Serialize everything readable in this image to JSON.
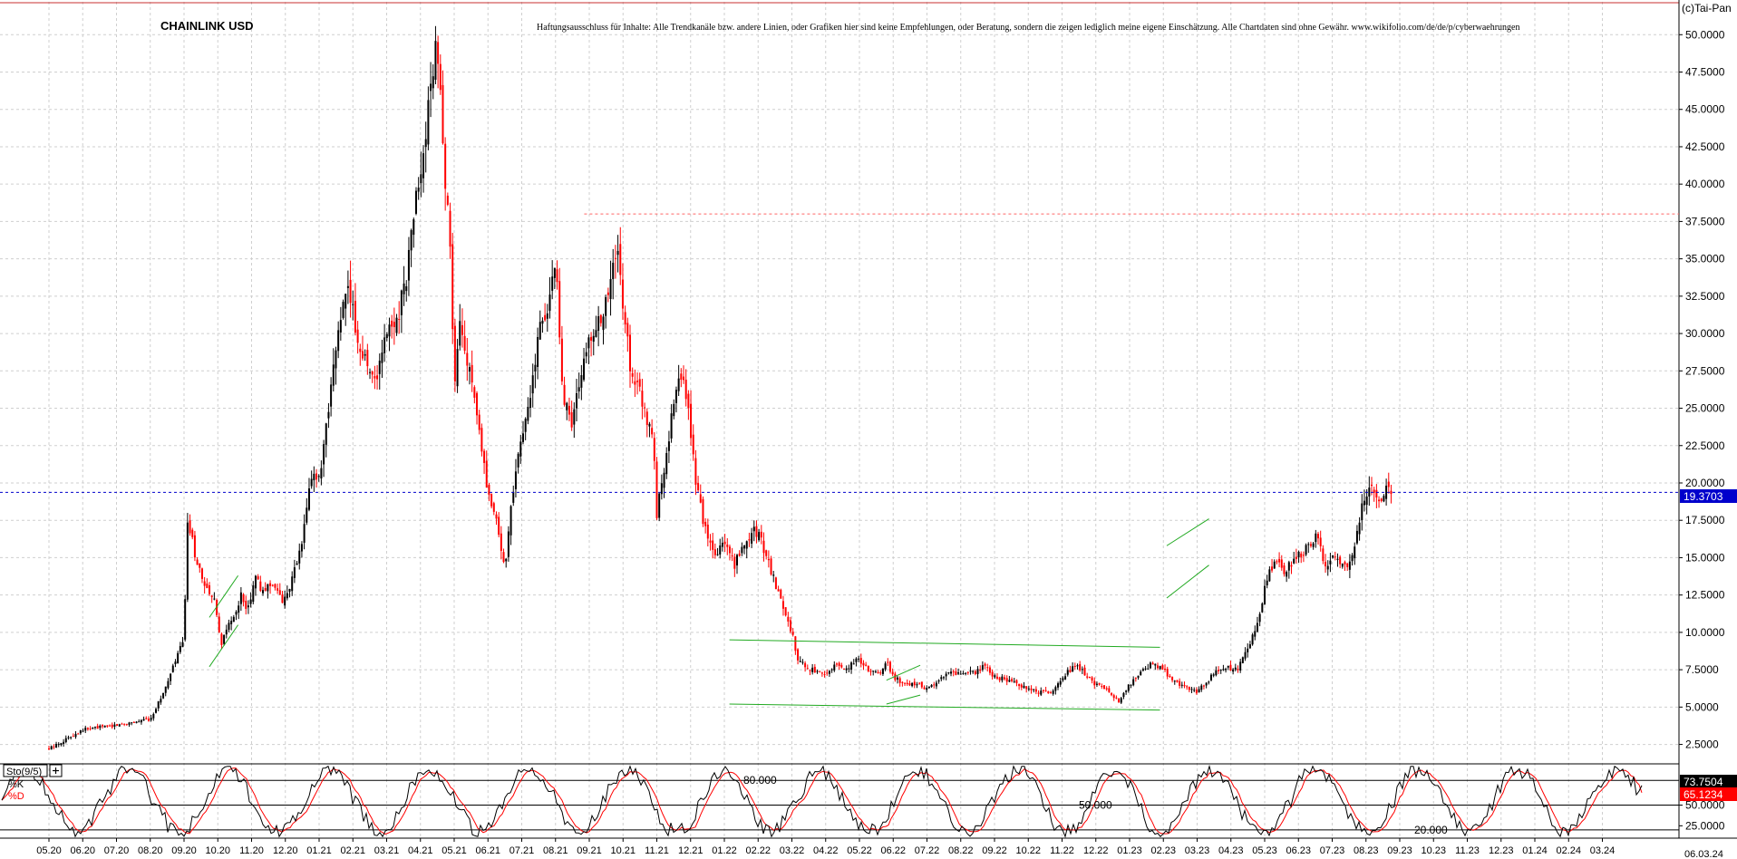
{
  "header": {
    "title": "CHAINLINK USD",
    "disclaimer": "Haftungsausschluss für Inhalte: Alle Trendkanäle bzw. andere Linien, oder Grafiken hier sind keine Empfehlungen, oder Beratung, sondern die zeigen lediglich meine eigene Einschätzung. Alle Chartdaten sind ohne Gewähr.  www.wikifolio.com/de/de/p/cyberwaehrungen",
    "copyright": "(c)Tai-Pan"
  },
  "chart_data": [
    {
      "type": "candlestick",
      "title": "CHAINLINK USD",
      "y_scale": "linear",
      "ylim": [
        1.2,
        52.2
      ],
      "y_ticks": [
        "2.5000",
        "5.0000",
        "7.5000",
        "10.0000",
        "12.5000",
        "15.0000",
        "17.5000",
        "20.0000",
        "22.5000",
        "25.0000",
        "27.5000",
        "30.0000",
        "32.5000",
        "35.0000",
        "37.5000",
        "40.0000",
        "42.5000",
        "45.0000",
        "47.5000",
        "50.0000"
      ],
      "y_tick_values": [
        2.5,
        5,
        7.5,
        10,
        12.5,
        15,
        17.5,
        20,
        22.5,
        25,
        27.5,
        30,
        32.5,
        35,
        37.5,
        40,
        42.5,
        45,
        47.5,
        50
      ],
      "x_ticks": [
        "05.20",
        "06.20",
        "07.20",
        "08.20",
        "09.20",
        "10.20",
        "11.20",
        "12.20",
        "01.21",
        "02.21",
        "03.21",
        "04.21",
        "05.21",
        "06.21",
        "07.21",
        "08.21",
        "09.21",
        "10.21",
        "11.21",
        "12.21",
        "01.22",
        "02.22",
        "03.22",
        "04.22",
        "05.22",
        "06.22",
        "07.22",
        "08.22",
        "09.22",
        "10.22",
        "11.22",
        "12.22",
        "01.23",
        "02.23",
        "03.23",
        "04.23",
        "05.23",
        "06.23",
        "07.23",
        "08.23",
        "09.23",
        "10.23",
        "11.23",
        "12.23",
        "01.24",
        "02.24",
        "03.24"
      ],
      "x_end_label": "06.03.24",
      "grid": true,
      "colors": {
        "up": "#000000",
        "down": "#ff0000",
        "current_price": "#0000cc",
        "resistance": "#ff6666",
        "trendline": "#22aa22"
      },
      "current_price": {
        "value": 19.3703,
        "label": "19.3703"
      },
      "resistance_level": 38.0,
      "price_path": [
        [
          0,
          2.2
        ],
        [
          1,
          3.5
        ],
        [
          2,
          3.8
        ],
        [
          3,
          4.2
        ],
        [
          3.5,
          6.5
        ],
        [
          3.8,
          8.5
        ],
        [
          4.0,
          9.5
        ],
        [
          4.1,
          17.5
        ],
        [
          4.3,
          15.5
        ],
        [
          4.6,
          13
        ],
        [
          4.9,
          12
        ],
        [
          5.1,
          9
        ],
        [
          5.3,
          10.5
        ],
        [
          5.5,
          11
        ],
        [
          5.7,
          12.5
        ],
        [
          5.9,
          11.5
        ],
        [
          6.1,
          14
        ],
        [
          6.3,
          12.5
        ],
        [
          6.6,
          13.5
        ],
        [
          6.9,
          12
        ],
        [
          7.2,
          13.5
        ],
        [
          7.5,
          16
        ],
        [
          7.8,
          21
        ],
        [
          8.0,
          20
        ],
        [
          8.3,
          25
        ],
        [
          8.6,
          31
        ],
        [
          8.9,
          33
        ],
        [
          9.1,
          30
        ],
        [
          9.4,
          28
        ],
        [
          9.7,
          27
        ],
        [
          10.0,
          30
        ],
        [
          10.3,
          31
        ],
        [
          10.6,
          34
        ],
        [
          10.8,
          38
        ],
        [
          11.1,
          42
        ],
        [
          11.4,
          48
        ],
        [
          11.5,
          50
        ],
        [
          11.6,
          45
        ],
        [
          11.9,
          35
        ],
        [
          12.0,
          26
        ],
        [
          12.2,
          31
        ],
        [
          12.4,
          28
        ],
        [
          12.7,
          24
        ],
        [
          13.0,
          19
        ],
        [
          13.3,
          17
        ],
        [
          13.5,
          14
        ],
        [
          13.7,
          19
        ],
        [
          13.9,
          22
        ],
        [
          14.2,
          25
        ],
        [
          14.5,
          30
        ],
        [
          14.8,
          32
        ],
        [
          15.0,
          35
        ],
        [
          15.2,
          26
        ],
        [
          15.5,
          24
        ],
        [
          15.8,
          28
        ],
        [
          16.1,
          30
        ],
        [
          16.4,
          31
        ],
        [
          16.7,
          34
        ],
        [
          16.8,
          36
        ],
        [
          17.0,
          32
        ],
        [
          17.2,
          28
        ],
        [
          17.5,
          26
        ],
        [
          17.9,
          23
        ],
        [
          18.0,
          18
        ],
        [
          18.3,
          22
        ],
        [
          18.6,
          27
        ],
        [
          18.9,
          26
        ],
        [
          19.1,
          21
        ],
        [
          19.4,
          17
        ],
        [
          19.7,
          15
        ],
        [
          20.0,
          16
        ],
        [
          20.3,
          14.5
        ],
        [
          20.6,
          16
        ],
        [
          20.9,
          17
        ],
        [
          21.1,
          16
        ],
        [
          21.4,
          14
        ],
        [
          21.7,
          12
        ],
        [
          22.0,
          10
        ],
        [
          22.2,
          8
        ],
        [
          22.6,
          7.5
        ],
        [
          23.0,
          7
        ],
        [
          23.3,
          8
        ],
        [
          23.6,
          7.5
        ],
        [
          23.9,
          8.2
        ],
        [
          24.3,
          7.5
        ],
        [
          24.6,
          7.2
        ],
        [
          24.8,
          8.2
        ],
        [
          25.0,
          7
        ],
        [
          25.4,
          6.5
        ],
        [
          25.7,
          6.6
        ],
        [
          26.0,
          6.2
        ],
        [
          26.4,
          7
        ],
        [
          26.7,
          7.4
        ],
        [
          27.0,
          7.2
        ],
        [
          27.4,
          7.3
        ],
        [
          27.7,
          7.8
        ],
        [
          28.0,
          7
        ],
        [
          28.4,
          6.8
        ],
        [
          28.7,
          6.5
        ],
        [
          29.0,
          6.3
        ],
        [
          29.3,
          6
        ],
        [
          29.7,
          6
        ],
        [
          30.0,
          7
        ],
        [
          30.4,
          7.8
        ],
        [
          30.7,
          7.2
        ],
        [
          31.0,
          6.5
        ],
        [
          31.3,
          6.2
        ],
        [
          31.5,
          5.6
        ],
        [
          31.7,
          5.4
        ],
        [
          32.0,
          6.5
        ],
        [
          32.3,
          7.2
        ],
        [
          32.7,
          8
        ],
        [
          33.0,
          7.5
        ],
        [
          33.3,
          6.7
        ],
        [
          33.7,
          6.3
        ],
        [
          34.0,
          6
        ],
        [
          34.3,
          6.7
        ],
        [
          34.6,
          7.5
        ],
        [
          34.9,
          7.6
        ],
        [
          35.2,
          7.5
        ],
        [
          35.5,
          9
        ],
        [
          35.8,
          10.5
        ],
        [
          36.0,
          13
        ],
        [
          36.3,
          15
        ],
        [
          36.6,
          14
        ],
        [
          36.9,
          15
        ],
        [
          37.2,
          15.5
        ],
        [
          37.5,
          16.5
        ],
        [
          37.8,
          14.5
        ],
        [
          38.1,
          15
        ],
        [
          38.4,
          14.2
        ],
        [
          38.7,
          16
        ],
        [
          38.9,
          19
        ],
        [
          39.2,
          19.5
        ],
        [
          39.4,
          18.5
        ],
        [
          39.6,
          20
        ],
        [
          39.8,
          19.37
        ]
      ],
      "channels": [
        {
          "from": [
            4.75,
            7.7
          ],
          "to": [
            5.6,
            10.5
          ]
        },
        {
          "from": [
            4.75,
            11.0
          ],
          "to": [
            5.6,
            13.8
          ]
        },
        {
          "from": [
            20.15,
            9.5
          ],
          "to": [
            32.9,
            9.0
          ]
        },
        {
          "from": [
            20.15,
            5.2
          ],
          "to": [
            32.9,
            4.8
          ]
        },
        {
          "from": [
            24.8,
            5.2
          ],
          "to": [
            25.8,
            5.8
          ]
        },
        {
          "from": [
            24.8,
            6.8
          ],
          "to": [
            25.8,
            7.8
          ]
        },
        {
          "from": [
            33.1,
            12.3
          ],
          "to": [
            34.35,
            14.5
          ]
        },
        {
          "from": [
            33.1,
            15.8
          ],
          "to": [
            34.35,
            17.6
          ]
        }
      ]
    },
    {
      "type": "line",
      "title": "Sto(9/5)",
      "ylim": [
        10,
        100
      ],
      "y_ticks": [
        "25.0000",
        "50.0000"
      ],
      "y_tick_values": [
        25,
        50
      ],
      "levels": [
        {
          "value": 80,
          "label": "80.000"
        },
        {
          "value": 50,
          "label": "50.000"
        },
        {
          "value": 20,
          "label": "20.000"
        }
      ],
      "series": [
        {
          "name": "%K",
          "color": "#000000",
          "last_value": 73.7504,
          "last_label": "73.7504"
        },
        {
          "name": "%D",
          "color": "#ff0000",
          "last_value": 65.1234,
          "last_label": "65.1234"
        }
      ]
    }
  ]
}
